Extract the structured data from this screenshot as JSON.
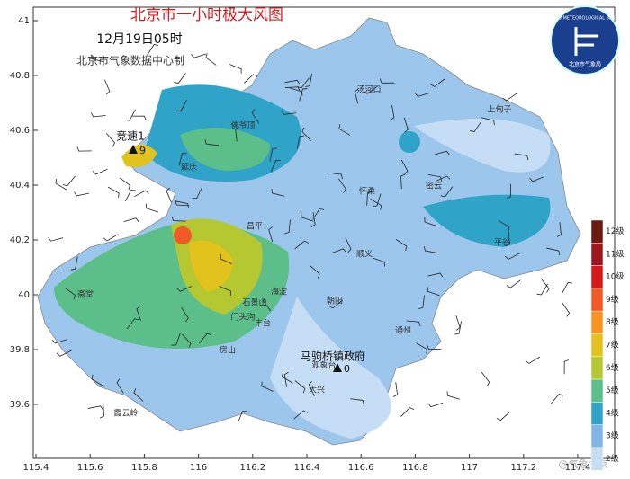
{
  "header": {
    "title": "北京市一小时极大风图",
    "subtitle": "12月19日05时",
    "credit": "北京市气象数据中心制"
  },
  "axes": {
    "xticks": [
      115.4,
      115.6,
      115.8,
      116,
      116.2,
      116.4,
      116.6,
      116.8,
      117,
      117.2,
      117.4
    ],
    "yticks": [
      39.6,
      39.8,
      40,
      40.2,
      40.4,
      40.6,
      40.8,
      41
    ]
  },
  "legend": [
    {
      "label": "12级",
      "color": "#6b1a10"
    },
    {
      "label": "11级",
      "color": "#a0141e"
    },
    {
      "label": "10级",
      "color": "#d7191c"
    },
    {
      "label": "9级",
      "color": "#f05a28"
    },
    {
      "label": "8级",
      "color": "#f7941d"
    },
    {
      "label": "7级",
      "color": "#e2c21c"
    },
    {
      "label": "6级",
      "color": "#b5c832"
    },
    {
      "label": "5级",
      "color": "#5cbf8a"
    },
    {
      "label": "4级",
      "color": "#2fa4c8"
    },
    {
      "label": "3级",
      "color": "#80b6e6"
    },
    {
      "label": "2级",
      "color": "#c6def5"
    }
  ],
  "places": [
    "汤河口",
    "上甸子",
    "佛爷顶",
    "延庆",
    "怀柔",
    "密云",
    "昌平",
    "平谷",
    "顺义",
    "朝阳",
    "海淀",
    "石景山",
    "门头沟",
    "丰台",
    "斋堂",
    "霞云岭",
    "房山",
    "大兴",
    "通州",
    "观象台"
  ],
  "stations": [
    {
      "name": "竞速1",
      "level": 9
    },
    {
      "name": "马驹桥镇政府",
      "level": 0
    }
  ],
  "logo": {
    "text": "BEIJING METEOROLOGICAL SERVICE",
    "name": "北京市气象局"
  },
  "watermark": "@气象北京"
}
